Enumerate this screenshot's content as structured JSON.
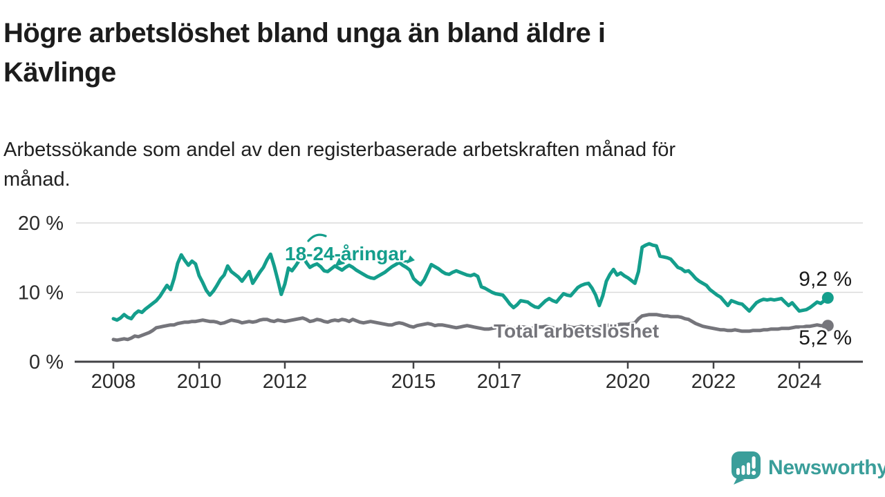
{
  "chart_data": {
    "type": "line",
    "title": "Högre arbetslöshet bland unga än bland äldre i Kävlinge",
    "title_lines": [
      "Högre arbetslöshet bland unga än bland äldre i",
      "Kävlinge"
    ],
    "subtitle": "Arbetssökande som andel av den registerbaserade arbetskraften månad för månad.",
    "subtitle_lines": [
      "Arbetssökande som andel av den registerbaserade arbetskraften månad för",
      "månad."
    ],
    "unit": "%",
    "x_start_year": 2008,
    "months_per_point": 1,
    "x_ticks": [
      "2008",
      "2010",
      "2012",
      "2015",
      "2017",
      "2020",
      "2022",
      "2024"
    ],
    "y_ticks": [
      {
        "label": "0 %",
        "value": 0
      },
      {
        "label": "10 %",
        "value": 10
      },
      {
        "label": "20 %",
        "value": 20
      }
    ],
    "ylim": [
      0,
      21
    ],
    "grid": "horizontal",
    "legend_position": "inline-labels",
    "series": [
      {
        "name": "18-24-åringar",
        "color": "#149e8c",
        "end_label": "9,2 %",
        "end_value": 9.2,
        "values": [
          6.2,
          6.0,
          6.3,
          6.8,
          6.4,
          6.2,
          6.9,
          7.3,
          7.1,
          7.6,
          8.0,
          8.4,
          8.8,
          9.4,
          10.2,
          11.0,
          10.4,
          12.0,
          14.2,
          15.4,
          14.6,
          13.9,
          14.5,
          14.1,
          12.4,
          11.4,
          10.3,
          9.6,
          10.2,
          11.0,
          11.9,
          12.5,
          13.8,
          13.0,
          12.6,
          12.2,
          11.6,
          12.3,
          13.0,
          11.3,
          12.1,
          12.9,
          13.6,
          14.7,
          15.5,
          13.8,
          11.8,
          9.7,
          11.2,
          13.5,
          13.1,
          13.8,
          14.6,
          15.4,
          14.3,
          13.6,
          13.9,
          14.1,
          13.7,
          13.1,
          13.0,
          13.4,
          13.8,
          13.5,
          13.2,
          13.6,
          13.9,
          13.6,
          13.2,
          12.9,
          12.6,
          12.3,
          12.1,
          12.0,
          12.3,
          12.6,
          12.9,
          13.3,
          13.7,
          14.0,
          14.3,
          13.9,
          13.6,
          13.2,
          12.0,
          11.5,
          11.1,
          11.8,
          12.9,
          14.0,
          13.7,
          13.4,
          13.0,
          12.7,
          12.6,
          12.9,
          13.1,
          12.9,
          12.7,
          12.5,
          12.4,
          12.6,
          12.3,
          10.8,
          10.6,
          10.3,
          10.0,
          9.8,
          9.7,
          9.6,
          9.0,
          8.3,
          7.8,
          8.2,
          8.8,
          8.7,
          8.6,
          8.2,
          7.9,
          7.8,
          8.3,
          8.8,
          9.1,
          8.8,
          8.6,
          9.2,
          9.8,
          9.6,
          9.5,
          10.1,
          10.7,
          11.0,
          11.2,
          11.3,
          10.6,
          9.6,
          8.1,
          9.5,
          11.6,
          12.6,
          13.3,
          12.5,
          12.8,
          12.4,
          12.1,
          11.7,
          11.3,
          13.0,
          16.5,
          16.8,
          17.0,
          16.8,
          16.7,
          15.2,
          15.1,
          15.0,
          14.8,
          14.2,
          13.6,
          13.4,
          13.0,
          13.1,
          12.6,
          12.0,
          11.6,
          11.3,
          11.0,
          10.4,
          10.0,
          9.6,
          9.3,
          8.7,
          8.1,
          8.8,
          8.6,
          8.4,
          8.3,
          7.8,
          7.3,
          7.9,
          8.5,
          8.8,
          9.0,
          8.9,
          9.0,
          8.9,
          9.0,
          9.1,
          8.6,
          8.1,
          8.5,
          7.9,
          7.3,
          7.4,
          7.5,
          7.8,
          8.2,
          8.6,
          8.4,
          8.8,
          9.2
        ]
      },
      {
        "name": "Total arbetslöshet",
        "color": "#75757b",
        "end_label": "5,2 %",
        "end_value": 5.2,
        "values": [
          3.2,
          3.1,
          3.2,
          3.3,
          3.2,
          3.4,
          3.7,
          3.6,
          3.8,
          4.0,
          4.2,
          4.5,
          4.9,
          5.0,
          5.1,
          5.2,
          5.3,
          5.3,
          5.5,
          5.6,
          5.7,
          5.7,
          5.8,
          5.8,
          5.9,
          6.0,
          5.9,
          5.8,
          5.8,
          5.7,
          5.5,
          5.6,
          5.8,
          6.0,
          5.9,
          5.8,
          5.6,
          5.7,
          5.8,
          5.7,
          5.8,
          6.0,
          6.1,
          6.1,
          5.9,
          5.8,
          6.0,
          5.9,
          5.8,
          5.9,
          6.0,
          6.1,
          6.2,
          6.3,
          6.1,
          5.8,
          5.9,
          6.1,
          6.0,
          5.8,
          5.7,
          5.9,
          6.0,
          5.9,
          6.1,
          6.0,
          5.8,
          6.1,
          5.9,
          5.7,
          5.6,
          5.7,
          5.8,
          5.7,
          5.6,
          5.5,
          5.4,
          5.3,
          5.3,
          5.5,
          5.6,
          5.5,
          5.3,
          5.1,
          5.0,
          5.2,
          5.3,
          5.4,
          5.5,
          5.4,
          5.2,
          5.3,
          5.3,
          5.2,
          5.1,
          5.0,
          4.9,
          5.0,
          5.1,
          5.2,
          5.1,
          5.0,
          4.9,
          4.8,
          4.7,
          4.7,
          4.8,
          4.9,
          5.0,
          5.1,
          5.0,
          4.9,
          4.8,
          4.9,
          5.0,
          5.0,
          4.9,
          4.8,
          4.9,
          5.0,
          5.0,
          5.1,
          5.0,
          4.9,
          4.8,
          4.9,
          5.0,
          5.1,
          5.0,
          4.9,
          5.0,
          5.1,
          5.0,
          5.1,
          5.0,
          4.9,
          5.0,
          5.1,
          5.2,
          5.3,
          5.2,
          5.3,
          5.4,
          5.4,
          5.4,
          5.5,
          5.6,
          6.2,
          6.6,
          6.7,
          6.8,
          6.8,
          6.8,
          6.7,
          6.6,
          6.6,
          6.5,
          6.5,
          6.5,
          6.4,
          6.2,
          6.1,
          5.8,
          5.5,
          5.3,
          5.1,
          5.0,
          4.9,
          4.8,
          4.7,
          4.6,
          4.6,
          4.5,
          4.5,
          4.6,
          4.5,
          4.4,
          4.4,
          4.4,
          4.5,
          4.5,
          4.5,
          4.6,
          4.6,
          4.7,
          4.7,
          4.7,
          4.8,
          4.8,
          4.8,
          4.9,
          5.0,
          5.0,
          5.0,
          5.1,
          5.1,
          5.2,
          5.3,
          5.2,
          5.2,
          5.2
        ]
      }
    ]
  },
  "colors": {
    "young_series": "#149e8c",
    "total_series": "#75757b",
    "gridline": "#dadada",
    "axis": "#424245",
    "text": "#1c1c1c"
  },
  "branding": {
    "logo_text": "Newsworthy",
    "logo_color": "#3a9e9a"
  }
}
